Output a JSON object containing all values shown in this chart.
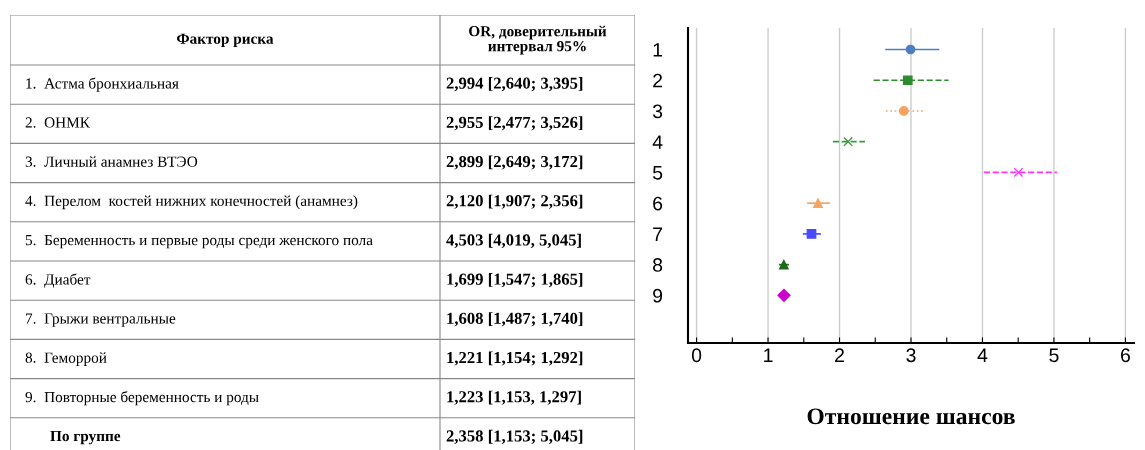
{
  "chart_data": [
    {
      "type": "other",
      "annotations": [
        "Фактор риска",
        "OR, доверительный интервал 95%",
        "1.  Астма бронхиальная",
        "2,994 [2,640; 3,395]",
        "2.  ОНМК",
        "2,955 [2,477; 3,526]",
        "3.  Личный анамнез ВТЭО",
        "2,899 [2,649; 3,172]",
        "4.  Перелом  костей нижних конечностей (анамнез)",
        "2,120 [1,907; 2,356]",
        "5.  Беременность и первые роды среди женского пола",
        "4,503 [4,019, 5,045]",
        "6.  Диабет",
        "1,699 [1,547; 1,865]",
        "7.  Грыжи вентральные",
        "1,608 [1,487; 1,740]",
        "8.  Геморрой",
        "1,221 [1,154; 1,292]",
        "9.  Повторные беременность и роды",
        "1,223 [1,153, 1,297]",
        "По группе",
        "2,358 [1,153; 5,045]"
      ]
    },
    {
      "type": "scatter",
      "orientation": "horizontal",
      "xlabel": "Отношение шансов",
      "categories": [
        "1",
        "2",
        "3",
        "4",
        "5",
        "6",
        "7",
        "8",
        "9"
      ],
      "series": [
        {
          "color": "#4a7fc1",
          "marker": "circle",
          "line_style": "solid",
          "values": [
            2.994,
            null,
            null,
            null,
            null,
            null,
            null,
            null,
            null
          ],
          "errors": [
            [
              2.64,
              3.395
            ],
            null,
            null,
            null,
            null,
            null,
            null,
            null,
            null
          ]
        },
        {
          "color": "#2e8b2e",
          "marker": "square",
          "line_style": "dashed",
          "values": [
            null,
            2.955,
            null,
            null,
            null,
            null,
            null,
            null,
            null
          ],
          "errors": [
            null,
            [
              2.477,
              3.526
            ],
            null,
            null,
            null,
            null,
            null,
            null,
            null
          ]
        },
        {
          "color": "#f4a460",
          "marker": "circle",
          "line_style": "dotted",
          "values": [
            null,
            null,
            2.899,
            null,
            null,
            null,
            null,
            null,
            null
          ],
          "errors": [
            null,
            null,
            [
              2.649,
              3.172
            ],
            null,
            null,
            null,
            null,
            null,
            null
          ]
        },
        {
          "color": "#3a9a3a",
          "marker": "cross",
          "line_style": "dashed",
          "values": [
            null,
            null,
            null,
            2.12,
            null,
            null,
            null,
            null,
            null
          ],
          "errors": [
            null,
            null,
            null,
            [
              1.907,
              2.356
            ],
            null,
            null,
            null,
            null,
            null
          ]
        },
        {
          "color": "#ff33ff",
          "marker": "cross",
          "line_style": "dashed",
          "values": [
            null,
            null,
            null,
            null,
            4.503,
            null,
            null,
            null,
            null
          ],
          "errors": [
            null,
            null,
            null,
            null,
            [
              4.019,
              5.045
            ],
            null,
            null,
            null,
            null
          ]
        },
        {
          "color": "#f4a460",
          "marker": "triangle",
          "line_style": "solid",
          "values": [
            null,
            null,
            null,
            null,
            null,
            1.699,
            null,
            null,
            null
          ],
          "errors": [
            null,
            null,
            null,
            null,
            null,
            [
              1.547,
              1.865
            ],
            null,
            null,
            null
          ]
        },
        {
          "color": "#4a4aff",
          "marker": "square",
          "line_style": "solid",
          "values": [
            null,
            null,
            null,
            null,
            null,
            null,
            1.608,
            null,
            null
          ],
          "errors": [
            null,
            null,
            null,
            null,
            null,
            null,
            [
              1.487,
              1.74
            ],
            null,
            null
          ]
        },
        {
          "color": "#1a6b1a",
          "marker": "triangle",
          "line_style": "solid",
          "values": [
            null,
            null,
            null,
            null,
            null,
            null,
            null,
            1.221,
            null
          ],
          "errors": [
            null,
            null,
            null,
            null,
            null,
            null,
            null,
            [
              1.154,
              1.292
            ],
            null
          ]
        },
        {
          "color": "#cc00cc",
          "marker": "diamond",
          "line_style": "solid",
          "values": [
            null,
            null,
            null,
            null,
            null,
            null,
            null,
            null,
            1.223
          ],
          "errors": [
            null,
            null,
            null,
            null,
            null,
            null,
            null,
            null,
            [
              1.153,
              1.297
            ]
          ]
        }
      ],
      "xlim": [
        -0.12,
        6.12
      ],
      "xticks": [
        0,
        {
          "value": 0.5,
          "label": null
        },
        1,
        {
          "value": 1.5,
          "label": null
        },
        2,
        {
          "value": 2.5,
          "label": null
        },
        3,
        {
          "value": 3.5,
          "label": null
        },
        4,
        {
          "value": 4.5,
          "label": null
        },
        5,
        {
          "value": 5.5,
          "label": null
        },
        6
      ],
      "grid": "x",
      "legend": false
    }
  ]
}
